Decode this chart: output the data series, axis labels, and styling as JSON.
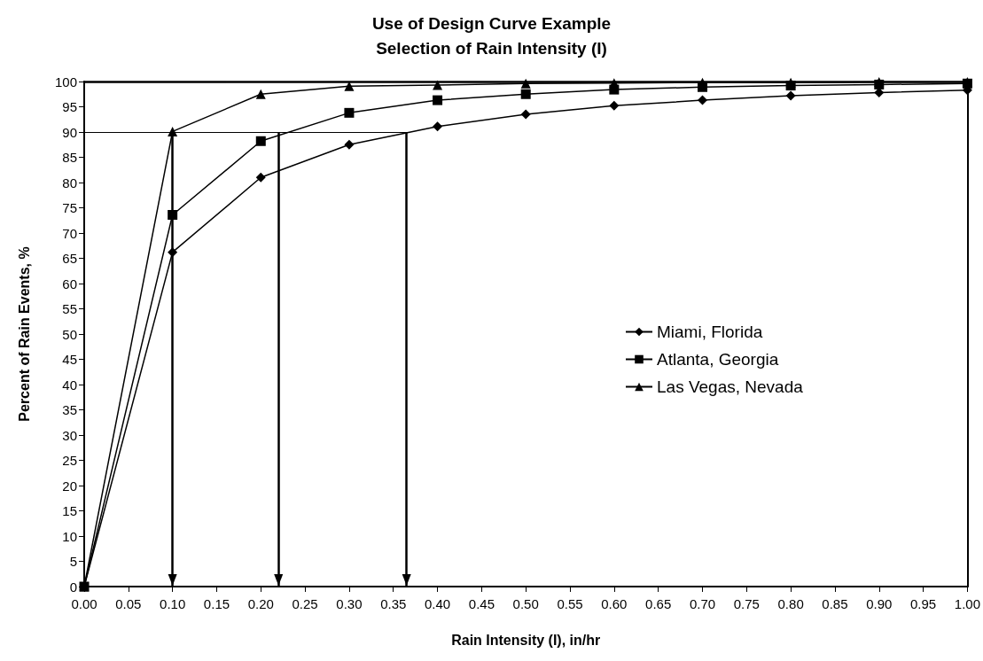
{
  "chart_data": {
    "type": "line",
    "title": "Use of Design Curve Example",
    "subtitle": "Selection of Rain Intensity (I)",
    "xlabel": "Rain Intensity (I), in/hr",
    "ylabel": "Percent of Rain Events, %",
    "x": [
      0,
      0.1,
      0.2,
      0.3,
      0.4,
      0.5,
      0.6,
      0.7,
      0.8,
      0.9,
      1.0
    ],
    "series": [
      {
        "name": "Miami, Florida",
        "color": "#000000",
        "marker": "diamond",
        "values": [
          0,
          66.2,
          81,
          87.5,
          91.1,
          93.5,
          95.2,
          96.3,
          97.2,
          97.8,
          98.3
        ]
      },
      {
        "name": "Atlanta, Georgia",
        "color": "#000000",
        "marker": "square",
        "values": [
          0,
          73.6,
          88.2,
          93.8,
          96.3,
          97.5,
          98.4,
          98.9,
          99.2,
          99.4,
          99.6
        ]
      },
      {
        "name": "Las Vegas, Nevada",
        "color": "#000000",
        "marker": "triangle",
        "values": [
          0,
          90.1,
          97.5,
          99.1,
          99.3,
          99.6,
          99.7,
          99.8,
          99.8,
          99.9,
          99.9
        ]
      }
    ],
    "xlim": [
      0,
      1
    ],
    "xticks": [
      {
        "value": 0,
        "label": "0.00"
      },
      {
        "value": 0.05,
        "label": "0.05"
      },
      {
        "value": 0.1,
        "label": "0.10"
      },
      {
        "value": 0.15,
        "label": "0.15"
      },
      {
        "value": 0.2,
        "label": "0.20"
      },
      {
        "value": 0.25,
        "label": "0.25"
      },
      {
        "value": 0.3,
        "label": "0.30"
      },
      {
        "value": 0.35,
        "label": "0.35"
      },
      {
        "value": 0.4,
        "label": "0.40"
      },
      {
        "value": 0.45,
        "label": "0.45"
      },
      {
        "value": 0.5,
        "label": "0.50"
      },
      {
        "value": 0.55,
        "label": "0.55"
      },
      {
        "value": 0.6,
        "label": "0.60"
      },
      {
        "value": 0.65,
        "label": "0.65"
      },
      {
        "value": 0.7,
        "label": "0.70"
      },
      {
        "value": 0.75,
        "label": "0.75"
      },
      {
        "value": 0.8,
        "label": "0.80"
      },
      {
        "value": 0.85,
        "label": "0.85"
      },
      {
        "value": 0.9,
        "label": "0.90"
      },
      {
        "value": 0.95,
        "label": "0.95"
      },
      {
        "value": 1,
        "label": "1.00"
      }
    ],
    "ylim": [
      0,
      100
    ],
    "yticks": [
      0,
      5,
      10,
      15,
      20,
      25,
      30,
      35,
      40,
      45,
      50,
      55,
      60,
      65,
      70,
      75,
      80,
      85,
      90,
      95,
      100
    ],
    "ref_lines": [
      {
        "axis": "y",
        "value": 90,
        "color": "#000000"
      },
      {
        "axis": "x",
        "value": 0.1,
        "color": "#000000"
      },
      {
        "axis": "x",
        "value": 0.22,
        "color": "#000000"
      },
      {
        "axis": "x",
        "value": 0.365,
        "color": "#000000"
      }
    ],
    "grid": false,
    "legend": "right",
    "line_style": "solid"
  }
}
